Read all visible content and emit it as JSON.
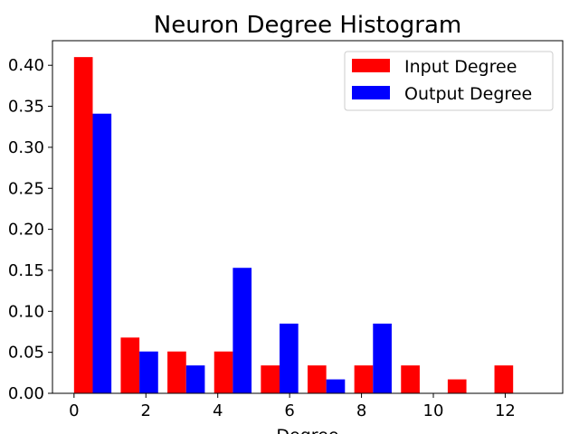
{
  "chart_data": {
    "type": "bar",
    "title": "Neuron Degree Histogram",
    "xlabel": "Degree",
    "ylabel": "",
    "xlim": [
      -0.6,
      13.6
    ],
    "ylim": [
      0,
      0.43
    ],
    "xticks": [
      0,
      2,
      4,
      6,
      8,
      10,
      12
    ],
    "yticks": [
      0.0,
      0.05,
      0.1,
      0.15,
      0.2,
      0.25,
      0.3,
      0.35,
      0.4
    ],
    "ytick_labels": [
      "0.00",
      "0.05",
      "0.10",
      "0.15",
      "0.20",
      "0.25",
      "0.30",
      "0.35",
      "0.40"
    ],
    "bin_edges": [
      0,
      1.3,
      2.6,
      3.9,
      5.2,
      6.5,
      7.8,
      9.1,
      10.4,
      11.7,
      13
    ],
    "series": [
      {
        "name": "Input Degree",
        "color": "#ff0000",
        "values": [
          0.41,
          0.068,
          0.051,
          0.051,
          0.034,
          0.034,
          0.034,
          0.034,
          0.017,
          0.034
        ]
      },
      {
        "name": "Output Degree",
        "color": "#0000ff",
        "values": [
          0.341,
          0.051,
          0.034,
          0.153,
          0.085,
          0.017,
          0.085,
          0.0,
          0.0,
          0.0
        ]
      }
    ],
    "grid": false,
    "legend_position": "upper right"
  }
}
